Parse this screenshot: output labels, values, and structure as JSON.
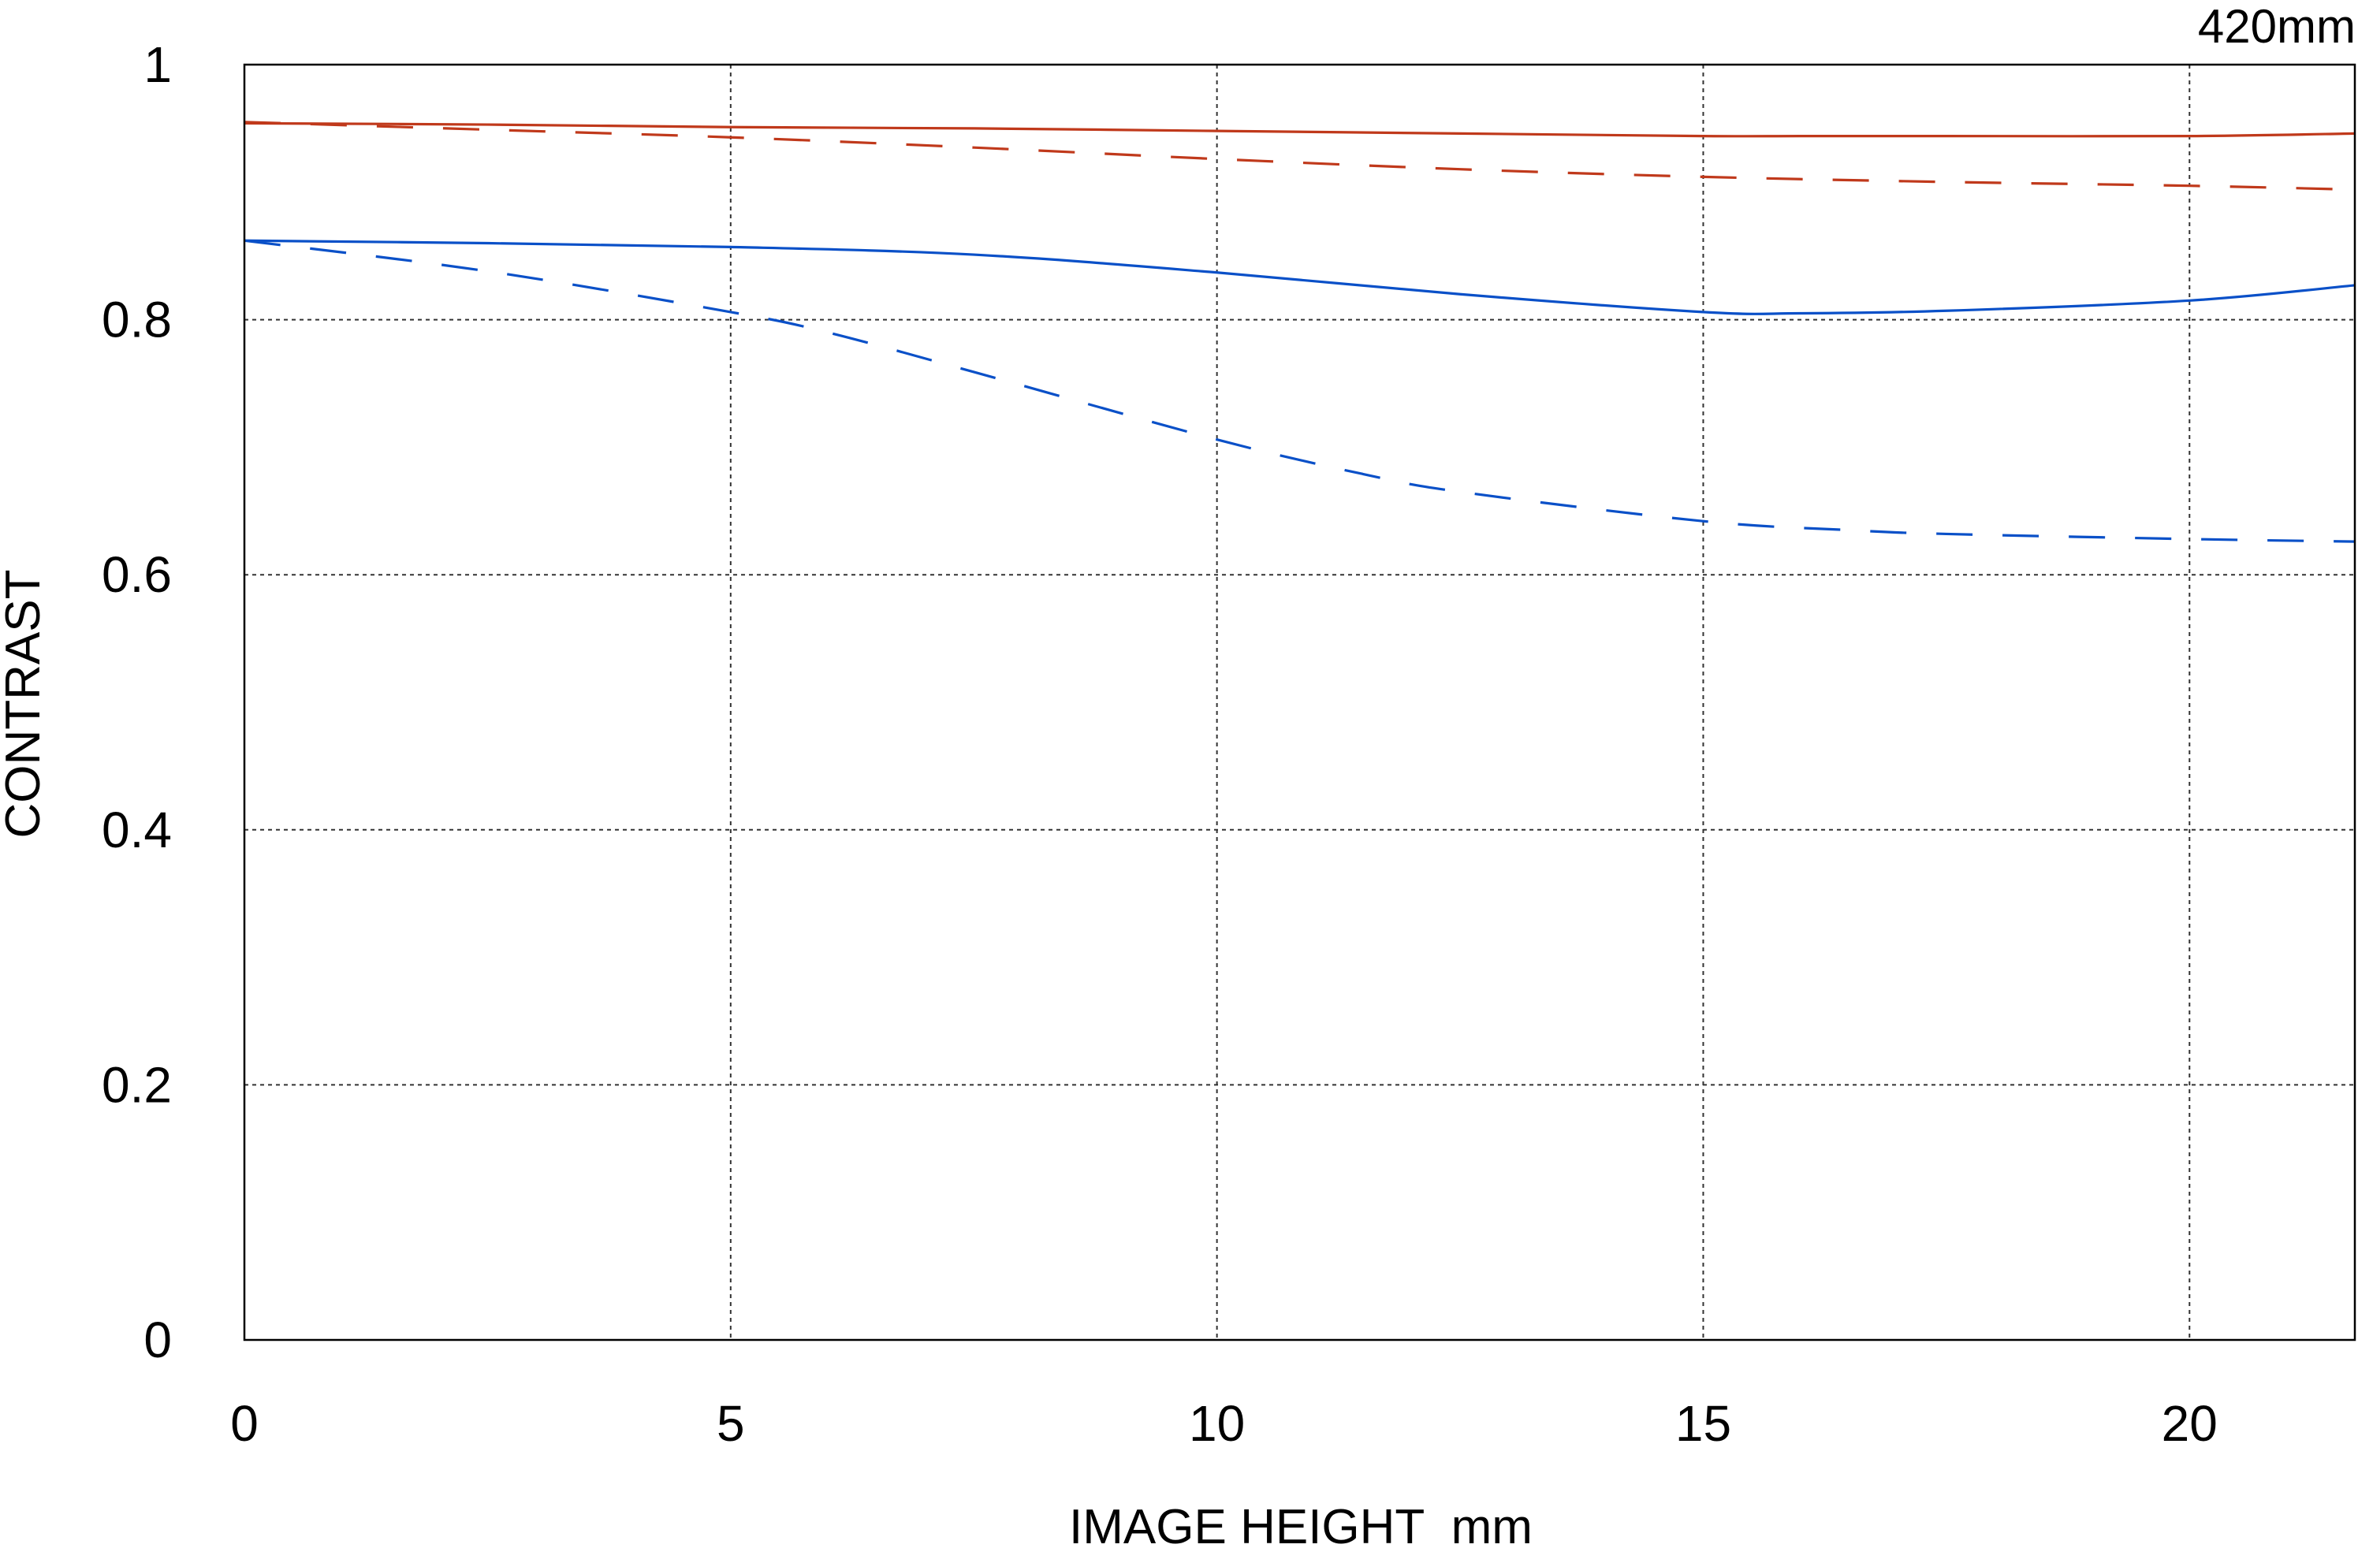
{
  "chart_data": {
    "type": "line",
    "title": "420mm",
    "xlabel": "IMAGE HEIGHT  mm",
    "ylabel": "CONTRAST",
    "xlim": [
      0,
      21.7
    ],
    "ylim": [
      0,
      1
    ],
    "xticks": [
      0,
      5,
      10,
      15,
      20
    ],
    "yticks": [
      0,
      0.2,
      0.4,
      0.6,
      0.8,
      1
    ],
    "xtick_labels": [
      "0",
      "5",
      "10",
      "15",
      "20"
    ],
    "ytick_labels": [
      "0",
      "0.2",
      "0.4",
      "0.6",
      "0.8",
      "1"
    ],
    "grid": true,
    "legend": "none",
    "colors": {
      "red": "#c0391b",
      "blue": "#0a50c8",
      "grid": "#333333",
      "frame": "#000000"
    },
    "series": [
      {
        "color": "red",
        "dash": "solid",
        "x": [
          0,
          2.5,
          5,
          7.5,
          10,
          12.5,
          15,
          16,
          17.5,
          20,
          21.7
        ],
        "y": [
          0.954,
          0.953,
          0.951,
          0.95,
          0.948,
          0.946,
          0.944,
          0.944,
          0.944,
          0.944,
          0.946
        ]
      },
      {
        "color": "red",
        "dash": "dashed",
        "x": [
          0,
          2.5,
          5,
          7.5,
          10,
          12.5,
          15,
          17.5,
          20,
          21.7
        ],
        "y": [
          0.955,
          0.949,
          0.943,
          0.935,
          0.926,
          0.918,
          0.912,
          0.908,
          0.905,
          0.902
        ]
      },
      {
        "color": "blue",
        "dash": "solid",
        "x": [
          0,
          2.5,
          5,
          7.5,
          10,
          12.5,
          15,
          16,
          17.5,
          20,
          21.7
        ],
        "y": [
          0.862,
          0.86,
          0.857,
          0.851,
          0.837,
          0.82,
          0.806,
          0.805,
          0.807,
          0.815,
          0.827
        ]
      },
      {
        "color": "blue",
        "dash": "dashed",
        "x": [
          0,
          2.5,
          5,
          6,
          7.5,
          10,
          11.5,
          12.5,
          15,
          16.5,
          17.5,
          20,
          21.7
        ],
        "y": [
          0.862,
          0.838,
          0.806,
          0.79,
          0.759,
          0.706,
          0.679,
          0.665,
          0.642,
          0.635,
          0.632,
          0.628,
          0.626
        ]
      }
    ]
  }
}
